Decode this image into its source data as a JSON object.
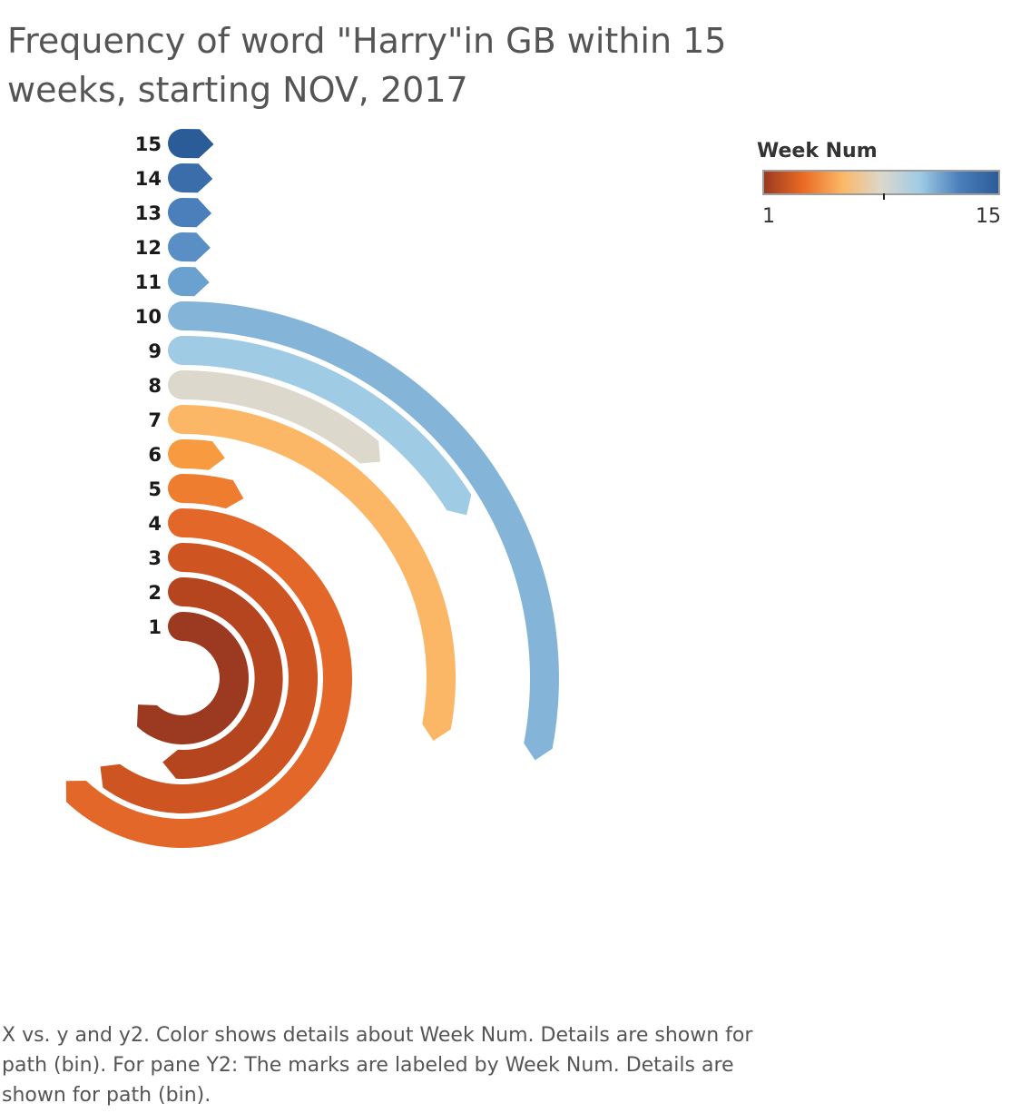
{
  "chart_data": {
    "type": "radial-bar",
    "title": "Frequency of word \"Harry\"in GB within 15 weeks, starting NOV, 2017",
    "categories": [
      "1",
      "2",
      "3",
      "4",
      "5",
      "6",
      "7",
      "8",
      "9",
      "10",
      "11",
      "12",
      "13",
      "14",
      "15"
    ],
    "series": [
      {
        "values": [
          62,
          51,
          60,
          62,
          4,
          2,
          28,
          11,
          16,
          28,
          0.5,
          0.5,
          0.5,
          0.5,
          0.5
        ]
      }
    ],
    "colors": [
      "#9c3a21",
      "#b4451f",
      "#ce5521",
      "#e4672a",
      "#ef7d2f",
      "#f79a40",
      "#fbb765",
      "#dcd8cc",
      "#9fcbe5",
      "#84b5d8",
      "#6aa1cf",
      "#5a8fc5",
      "#4a7fbb",
      "#3a6da9",
      "#2c5c97"
    ],
    "legend": {
      "title": "Week Num",
      "min_label": "1",
      "max_label": "15",
      "position": "top-right",
      "gradient": [
        "#9c3a21",
        "#ea6a23",
        "#fbb765",
        "#dcd8cc",
        "#9fcbe5",
        "#4a7fbb",
        "#2c5c97"
      ]
    },
    "caption": "X vs. y and y2.  Color shows details about Week Num.  Details are shown for path (bin).  For pane Y2:  The marks are labeled by Week Num. Details are shown for path (bin)."
  }
}
